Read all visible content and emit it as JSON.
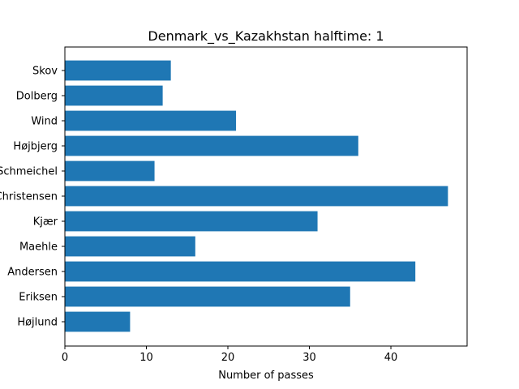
{
  "chart_data": {
    "type": "bar",
    "orientation": "horizontal",
    "title": "Denmark_vs_Kazakhstan halftime: 1",
    "xlabel": "Number of passes",
    "ylabel": "",
    "categories": [
      "Skov",
      "Dolberg",
      "Wind",
      "Højbjerg",
      "Schmeichel",
      "Christensen",
      "Kjær",
      "Maehle",
      "Andersen",
      "Eriksen",
      "Højlund"
    ],
    "values": [
      13,
      12,
      21,
      36,
      11,
      47,
      31,
      16,
      43,
      35,
      8
    ],
    "xlim": [
      0,
      49.35
    ],
    "xticks": [
      0,
      10,
      20,
      30,
      40
    ],
    "grid": false,
    "bar_color": "#1f77b4"
  }
}
